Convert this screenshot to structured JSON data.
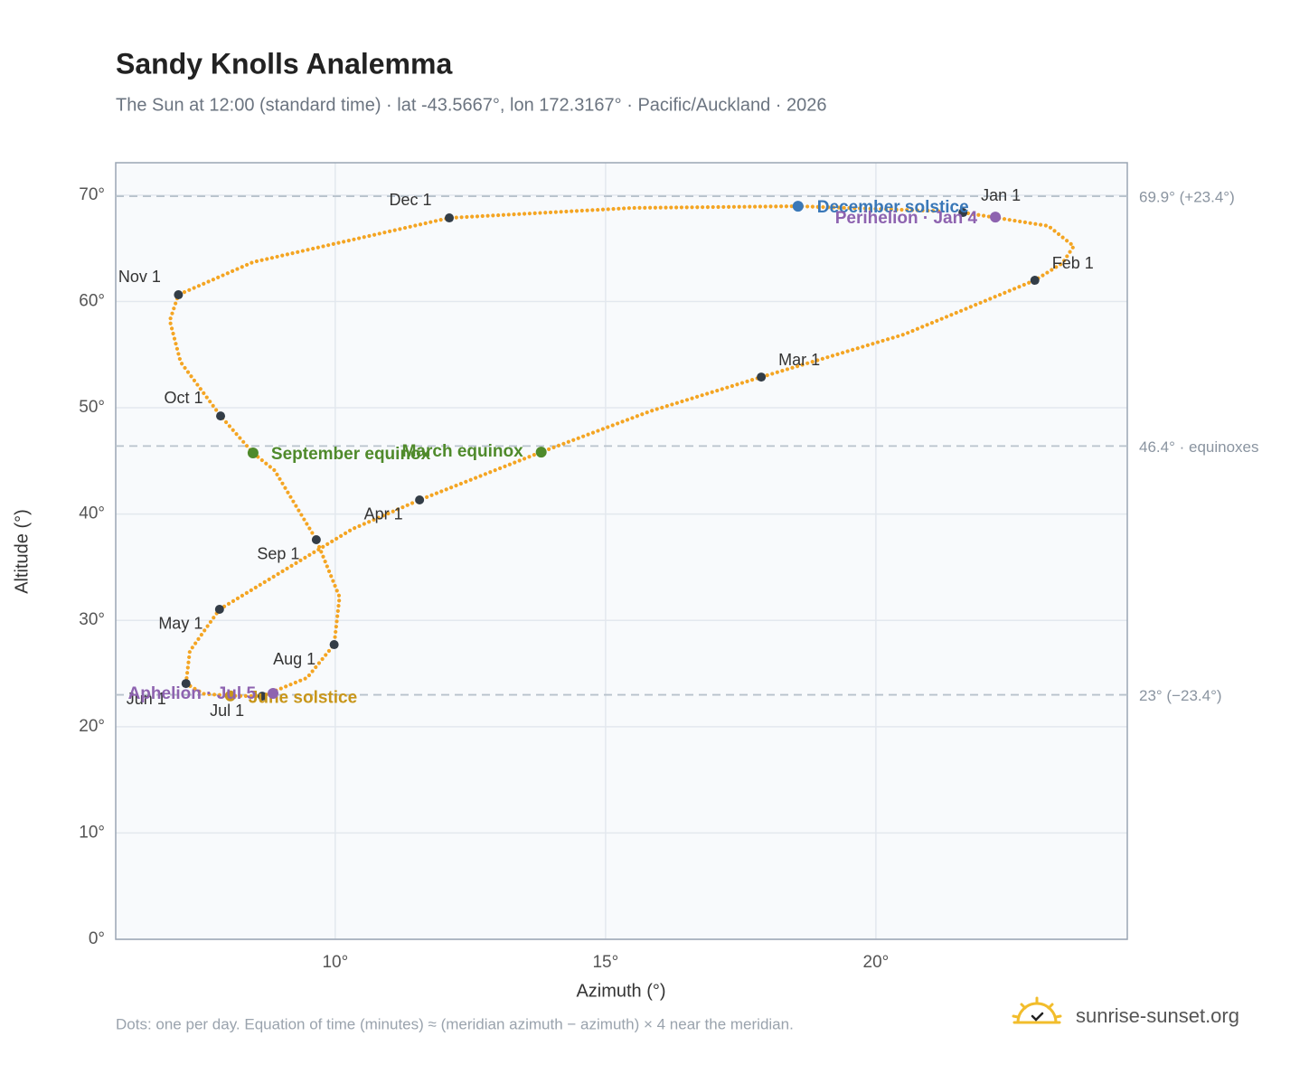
{
  "chart_data": {
    "type": "scatter",
    "title": "Sandy Knolls Analemma",
    "subtitle": "The Sun at 12:00 (standard time) · lat -43.5667°, lon 172.3167° · Pacific/Auckland · 2026",
    "x_label": "Azimuth (°)",
    "y_label": "Altitude (°)",
    "xlim": [
      5.94,
      24.65
    ],
    "ylim": [
      0,
      73.05
    ],
    "xticks": [
      {
        "value": 10,
        "label": "10°"
      },
      {
        "value": 15,
        "label": "15°"
      },
      {
        "value": 20,
        "label": "20°"
      }
    ],
    "yticks": [
      {
        "value": 0,
        "label": "0°"
      },
      {
        "value": 10,
        "label": "10°"
      },
      {
        "value": 20,
        "label": "20°"
      },
      {
        "value": 30,
        "label": "30°"
      },
      {
        "value": 40,
        "label": "40°"
      },
      {
        "value": 50,
        "label": "50°"
      },
      {
        "value": 60,
        "label": "60°"
      },
      {
        "value": 70,
        "label": "70°"
      }
    ],
    "grid": true,
    "path": {
      "color": "#f4a523",
      "x": [
        21.61,
        23.19,
        23.66,
        23.45,
        22.94,
        20.52,
        17.88,
        15.84,
        13.81,
        11.56,
        10.32,
        7.86,
        7.31,
        7.24,
        7.56,
        8.06,
        8.65,
        9.48,
        9.98,
        10.08,
        9.65,
        8.88,
        8.48,
        7.88,
        7.14,
        6.94,
        7.1,
        8.48,
        12.11,
        15.5,
        18.56,
        21.19
      ],
      "y": [
        68.37,
        67.1,
        65.2,
        63.6,
        61.99,
        56.9,
        52.89,
        49.7,
        45.83,
        41.33,
        38.6,
        31.04,
        27.1,
        24.06,
        23.1,
        22.9,
        22.87,
        24.6,
        27.72,
        32.2,
        37.59,
        44.1,
        45.75,
        49.23,
        54.3,
        58.2,
        60.63,
        63.7,
        67.86,
        68.8,
        68.96,
        68.5
      ]
    },
    "months": {
      "labels": [
        "Jan 1",
        "Feb 1",
        "Mar 1",
        "Apr 1",
        "May 1",
        "Jun 1",
        "Jul 1",
        "Aug 1",
        "Sep 1",
        "Oct 1",
        "Nov 1",
        "Dec 1"
      ],
      "color": "#333d47",
      "x": [
        21.61,
        22.94,
        17.88,
        11.56,
        7.86,
        7.24,
        8.65,
        9.98,
        9.65,
        7.88,
        7.1,
        12.11
      ],
      "y": [
        68.37,
        61.99,
        52.89,
        41.33,
        31.04,
        24.06,
        22.87,
        27.72,
        37.59,
        49.23,
        60.63,
        67.86
      ]
    },
    "events": [
      {
        "name": "December solstice",
        "color": "#3a78b8",
        "x": 18.56,
        "y": 68.96
      },
      {
        "name": "Perihelion · Jan 4",
        "color": "#8e63b0",
        "x": 22.21,
        "y": 67.94
      },
      {
        "name": "March equinox",
        "color": "#4f8a2b",
        "x": 13.81,
        "y": 45.83
      },
      {
        "name": "September equinox",
        "color": "#4f8a2b",
        "x": 8.48,
        "y": 45.75
      },
      {
        "name": "June solstice",
        "color": "#c8961a",
        "x": 8.06,
        "y": 22.9
      },
      {
        "name": "Aphelion · Jul 5",
        "color": "#8e63b0",
        "x": 8.85,
        "y": 23.13
      }
    ],
    "reference_lines": {
      "values": [
        69.9,
        46.4,
        23
      ],
      "value_labels": [
        "69.9° (+23.4°)",
        "46.4° · equinoxes",
        "23° (−23.4°)"
      ]
    },
    "footnote": "Dots: one per day. Equation of time (minutes) ≈ (meridian azimuth − azimuth) × 4 near the meridian.",
    "brand": "sunrise-sunset.org"
  }
}
